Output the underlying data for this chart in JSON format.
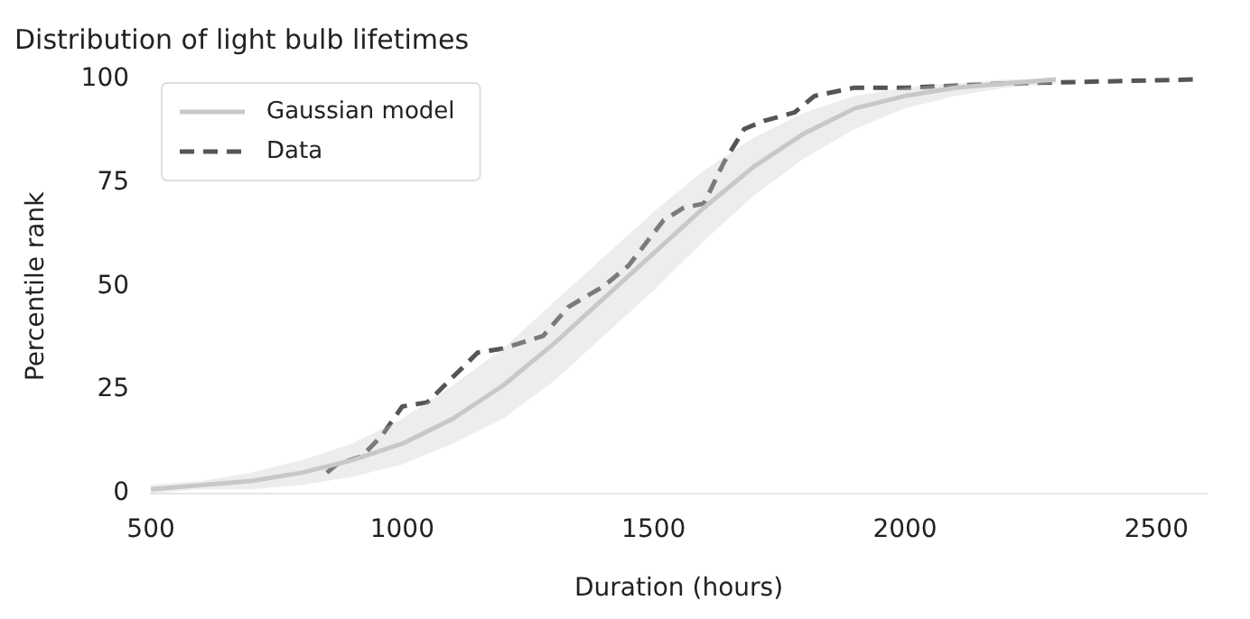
{
  "chart_data": {
    "type": "line",
    "title": "Distribution of light bulb lifetimes",
    "xlabel": "Duration (hours)",
    "ylabel": "Percentile rank",
    "xlim": [
      500,
      2600
    ],
    "xticks": [
      500,
      1000,
      1500,
      2000,
      2500
    ],
    "ylim": [
      0,
      100
    ],
    "yticks": [
      0,
      25,
      50,
      75,
      100
    ],
    "grid": false,
    "legend": "top left",
    "marker": "none",
    "series": [
      {
        "name": "Gaussian model",
        "color": "#c8c8c8",
        "line_style": "solid",
        "x": [
          500,
          600,
          700,
          800,
          900,
          1000,
          1100,
          1200,
          1300,
          1400,
          1500,
          1600,
          1700,
          1800,
          1900,
          2000,
          2100,
          2200,
          2300
        ],
        "values": [
          1,
          2,
          3,
          5,
          8,
          12,
          18,
          26,
          36,
          47,
          58,
          69,
          79,
          87,
          93,
          96,
          98,
          99,
          100
        ],
        "lower": [
          0,
          1,
          1,
          2,
          4,
          7,
          12,
          18,
          27,
          38,
          49,
          61,
          72,
          81,
          88,
          93,
          96,
          98,
          99
        ],
        "upper": [
          2,
          3,
          5,
          8,
          12,
          18,
          26,
          35,
          46,
          57,
          68,
          78,
          86,
          92,
          96,
          98,
          99,
          100,
          100
        ]
      },
      {
        "name": "Data",
        "color": "#555555",
        "line_style": "dashed",
        "x": [
          850,
          870,
          920,
          960,
          1000,
          1050,
          1100,
          1150,
          1200,
          1280,
          1330,
          1400,
          1450,
          1520,
          1560,
          1600,
          1640,
          1680,
          1720,
          1780,
          1820,
          1900,
          2000,
          2200,
          2580
        ],
        "values": [
          5,
          7,
          9,
          14,
          21,
          22,
          28,
          34,
          35,
          38,
          45,
          50,
          55,
          66,
          69,
          70,
          80,
          88,
          90,
          92,
          96,
          98,
          98,
          99,
          100
        ]
      }
    ]
  }
}
